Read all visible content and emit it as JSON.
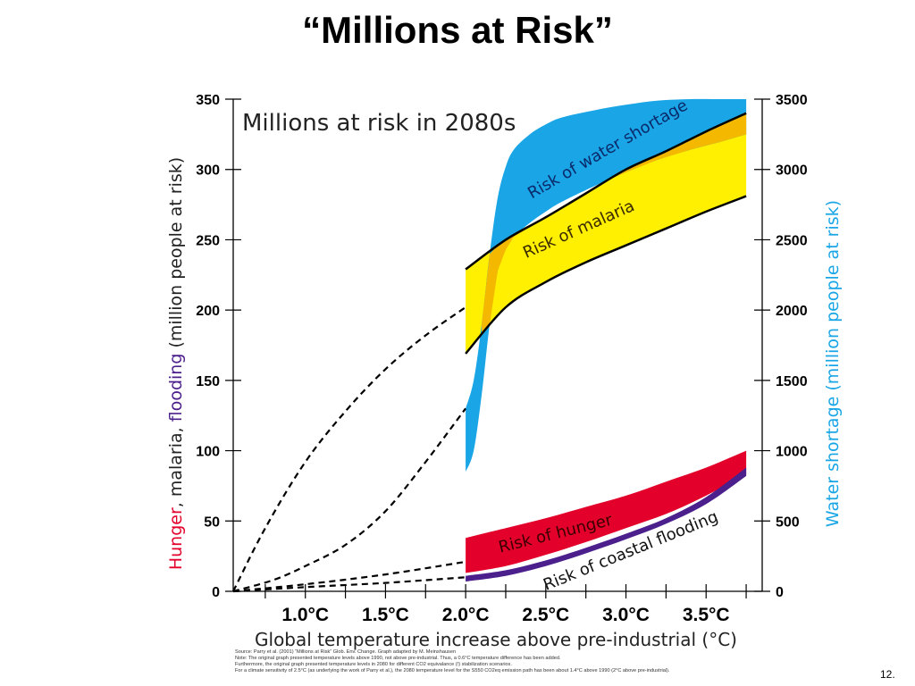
{
  "title": "“Millions at Risk”",
  "page_number": "12.",
  "sources": [
    "Source: Parry et al. (2001) “Millions at Risk” Glob. Env. Change. Graph adapted by M. Meinshausen",
    "Note: The original graph presented temperature levels above 1990, not above pre-industrial. Thus, a 0.6°C temperature difference has been added.",
    "Furthermore, the original graph presented temperature levels in 2080 for different CO2 equivalance (!) stabilization scenarios.",
    "For a climate sensitivity of 2.5°C (as underlying the work of Parry et al.), the 2080 temperature level for the S550 CO2eq emission path has been about 1.4°C above 1990 (2°C above pre-industrial)."
  ],
  "colors": {
    "hunger": "#e3002b",
    "malaria_yellow": "#ffef00",
    "malaria_orange": "#f5b800",
    "flooding": "#4b1f8c",
    "water": "#1aa6e6"
  },
  "chart_data": {
    "type": "area",
    "title": "Millions at risk in 2080s",
    "xlabel": "Global temperature increase above pre-industrial (°C)",
    "ylabel_left_parts": [
      "Hunger",
      ", malaria, ",
      "flooding",
      " (million people at risk)"
    ],
    "ylabel_right": "Water shortage (million people at risk)",
    "x_ticks": [
      1.0,
      1.5,
      2.0,
      2.5,
      3.0,
      3.5
    ],
    "x_tick_labels": [
      "1.0°C",
      "1.5°C",
      "2.0°C",
      "2.5°C",
      "3.0°C",
      "3.5°C"
    ],
    "xlim": [
      0.55,
      3.85
    ],
    "ylim_left": [
      0,
      350
    ],
    "y_ticks_left": [
      0,
      50,
      100,
      150,
      200,
      250,
      300,
      350
    ],
    "ylim_right": [
      0,
      3500
    ],
    "y_ticks_right": [
      0,
      500,
      1000,
      1500,
      2000,
      2500,
      3000,
      3500
    ],
    "series": [
      {
        "name": "Risk of water shortage",
        "axis": "right",
        "x": [
          2.0,
          2.05,
          2.1,
          2.15,
          2.2,
          2.25,
          2.3,
          2.4,
          2.5,
          2.6,
          2.8,
          3.0,
          3.2,
          3.4,
          3.6,
          3.75
        ],
        "upper": [
          1300,
          1500,
          1900,
          2400,
          2800,
          3020,
          3140,
          3250,
          3320,
          3370,
          3420,
          3460,
          3490,
          3500,
          3500,
          3500
        ],
        "lower": [
          850,
          1000,
          1400,
          1900,
          2280,
          2430,
          2520,
          2620,
          2700,
          2770,
          2880,
          2980,
          3070,
          3140,
          3200,
          3250
        ]
      },
      {
        "name": "Risk of malaria",
        "axis": "left",
        "x": [
          2.0,
          2.25,
          2.5,
          2.75,
          3.0,
          3.25,
          3.5,
          3.75
        ],
        "upper": [
          229,
          250,
          266,
          283,
          300,
          313,
          327,
          340
        ],
        "lower": [
          169,
          202,
          220,
          234,
          246,
          258,
          270,
          281
        ]
      },
      {
        "name": "Risk of hunger",
        "axis": "left",
        "x": [
          2.0,
          2.25,
          2.5,
          2.75,
          3.0,
          3.25,
          3.5,
          3.75
        ],
        "upper": [
          38,
          45,
          52,
          60,
          68,
          78,
          88,
          100
        ],
        "lower": [
          13,
          18,
          26,
          35,
          45,
          55,
          68,
          83
        ]
      },
      {
        "name": "Risk of coastal flooding",
        "axis": "left",
        "x": [
          2.0,
          2.25,
          2.5,
          2.75,
          3.0,
          3.25,
          3.5,
          3.75
        ],
        "upper": [
          11,
          15,
          22,
          31,
          41,
          52,
          67,
          88
        ],
        "lower": [
          7,
          11,
          18,
          27,
          37,
          48,
          62,
          82
        ]
      }
    ],
    "dashed_extrapolations": [
      {
        "x": [
          0.55,
          0.75,
          1.0,
          1.25,
          1.5,
          1.75,
          2.0
        ],
        "y": [
          0,
          45,
          92,
          128,
          158,
          182,
          202
        ]
      },
      {
        "x": [
          0.55,
          0.8,
          1.0,
          1.25,
          1.5,
          1.75,
          2.0
        ],
        "y": [
          0,
          8,
          18,
          33,
          57,
          92,
          130
        ]
      },
      {
        "x": [
          0.55,
          1.0,
          1.5,
          2.0
        ],
        "y": [
          0,
          5,
          12,
          21
        ]
      },
      {
        "x": [
          0.55,
          1.0,
          1.5,
          2.0
        ],
        "y": [
          0,
          3,
          6,
          10
        ]
      }
    ]
  }
}
